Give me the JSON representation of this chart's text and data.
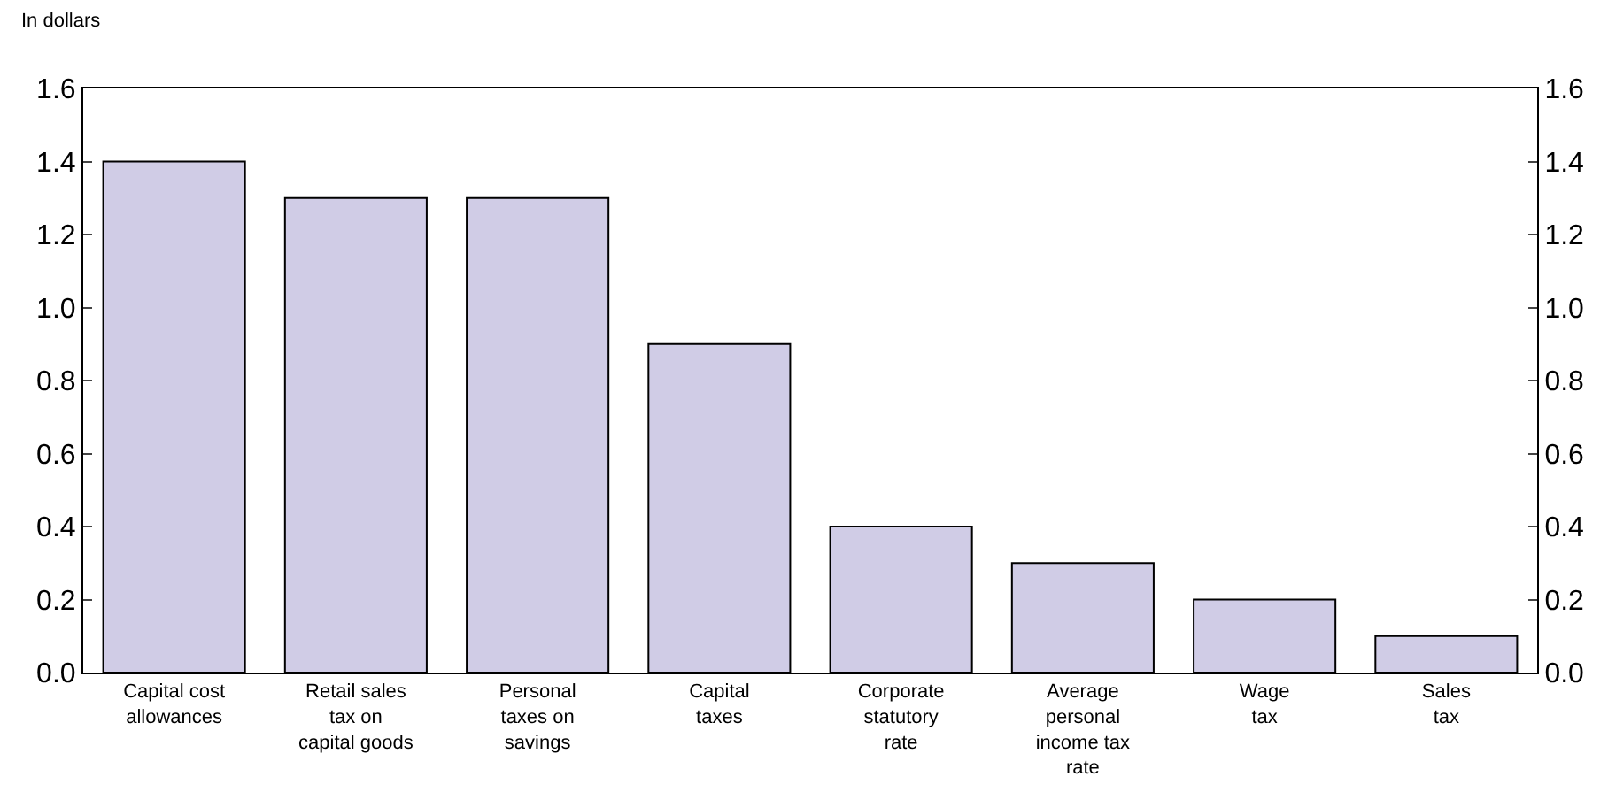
{
  "chart_data": {
    "type": "bar",
    "ylabel": "In dollars",
    "categories": [
      "Capital cost\nallowances",
      "Retail sales\ntax on\ncapital goods",
      "Personal\ntaxes on\nsavings",
      "Capital\ntaxes",
      "Corporate\nstatutory\nrate",
      "Average\npersonal\nincome tax\nrate",
      "Wage\ntax",
      "Sales\ntax"
    ],
    "values": [
      1.4,
      1.3,
      1.3,
      0.9,
      0.4,
      0.3,
      0.2,
      0.1
    ],
    "color": "#d0cce6",
    "ylim": [
      0,
      1.6
    ],
    "yticks": [
      {
        "value": 0,
        "label": "0.0"
      },
      0.2,
      0.4,
      0.6,
      0.8,
      {
        "value": 1,
        "label": "1.0"
      },
      1.2,
      1.4,
      1.6
    ],
    "y2lim": [
      0,
      1.6
    ],
    "y2ticks": [
      {
        "value": 0,
        "label": "0.0"
      },
      0.2,
      0.4,
      0.6,
      0.8,
      {
        "value": 1,
        "label": "1.0"
      },
      1.2,
      1.4,
      1.6
    ],
    "legend": false
  }
}
